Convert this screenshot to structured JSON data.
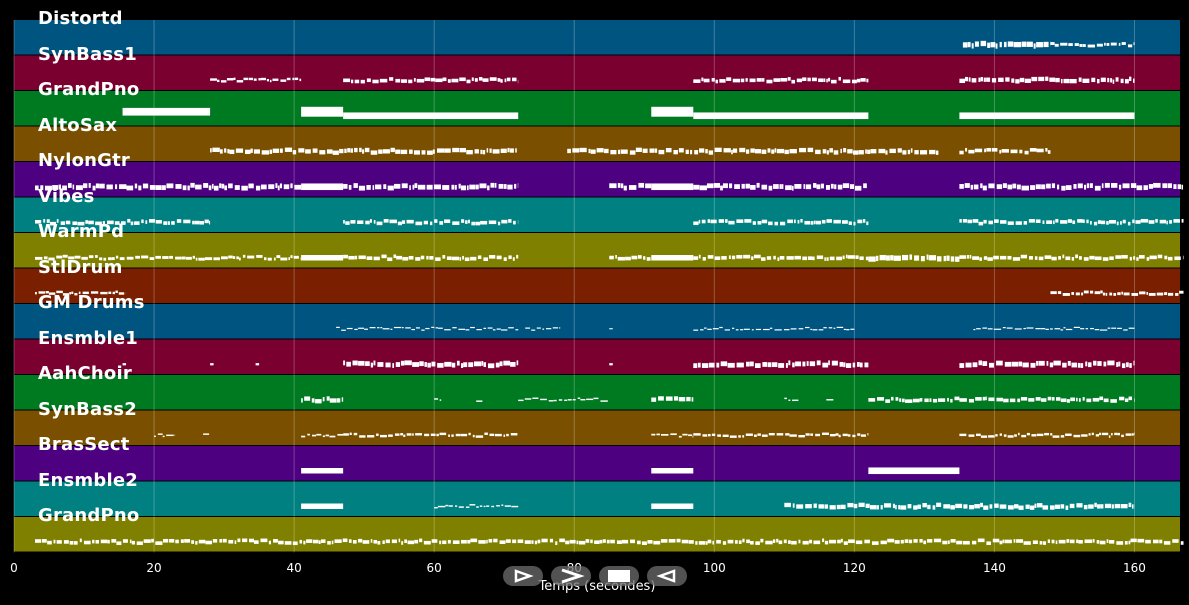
{
  "tracks": [
    {
      "name": "Distortd",
      "color": "#005580",
      "notes": [
        [
          135.5,
          148,
          2.2
        ],
        [
          148,
          160,
          1.2
        ]
      ]
    },
    {
      "name": "SynBass1",
      "color": "#7a0030",
      "notes": [
        [
          28,
          41,
          1
        ],
        [
          47,
          72,
          1.5
        ],
        [
          97,
          122,
          1.5
        ],
        [
          135,
          160,
          1.8
        ]
      ]
    },
    {
      "name": "GrandPno",
      "color": "#007a20",
      "notes": [
        [
          15.5,
          28,
          3.5
        ],
        [
          41,
          47,
          4.5
        ],
        [
          47,
          72,
          3
        ],
        [
          91,
          97,
          4.5
        ],
        [
          97,
          122,
          3
        ],
        [
          135,
          160,
          3
        ]
      ]
    },
    {
      "name": "AltoSax",
      "color": "#7a5000",
      "notes": [
        [
          28,
          72,
          1.8
        ],
        [
          79,
          132,
          1.8
        ],
        [
          135,
          148,
          1.5
        ]
      ]
    },
    {
      "name": "NylonGtr",
      "color": "#4d0080",
      "notes": [
        [
          3,
          41,
          2
        ],
        [
          41,
          47,
          3
        ],
        [
          47,
          72,
          2
        ],
        [
          85,
          91,
          2
        ],
        [
          91,
          97,
          3
        ],
        [
          97,
          122,
          2
        ],
        [
          135,
          167,
          2
        ]
      ]
    },
    {
      "name": "Vibes",
      "color": "#008080",
      "notes": [
        [
          3,
          28,
          1.5
        ],
        [
          47,
          72,
          1.5
        ],
        [
          97,
          122,
          1.5
        ],
        [
          135,
          167,
          1.5
        ]
      ]
    },
    {
      "name": "WarmPd",
      "color": "#808000",
      "notes": [
        [
          3,
          41,
          1.2
        ],
        [
          41,
          47,
          2.5
        ],
        [
          47,
          72,
          1.5
        ],
        [
          85,
          91,
          1.5
        ],
        [
          91,
          97,
          2.5
        ],
        [
          97,
          122,
          1.5
        ],
        [
          122,
          135,
          2.2
        ],
        [
          135,
          167,
          1.5
        ]
      ]
    },
    {
      "name": "StlDrum",
      "color": "#7a2000",
      "notes": [
        [
          3,
          16,
          1
        ],
        [
          148,
          167,
          1.2
        ]
      ]
    },
    {
      "name": "GM Drums",
      "color": "#005580",
      "notes": [
        [
          46,
          72,
          0.5
        ],
        [
          73,
          78,
          0.5
        ],
        [
          85,
          85.5,
          0.5
        ],
        [
          97,
          120,
          0.5
        ],
        [
          137,
          160,
          0.5
        ]
      ]
    },
    {
      "name": "Ensmble1",
      "color": "#7a0030",
      "notes": [
        [
          15.5,
          16,
          1
        ],
        [
          28,
          28.5,
          1
        ],
        [
          34.5,
          35,
          1
        ],
        [
          47,
          72,
          2
        ],
        [
          85,
          85.5,
          1
        ],
        [
          97,
          122,
          2
        ],
        [
          135,
          160,
          2
        ]
      ]
    },
    {
      "name": "AahChoir",
      "color": "#007a20",
      "notes": [
        [
          41,
          47,
          1.8
        ],
        [
          60,
          61,
          0.6
        ],
        [
          66,
          67,
          0.6
        ],
        [
          72,
          85,
          0.6
        ],
        [
          91,
          97,
          1.8
        ],
        [
          110,
          112,
          0.6
        ],
        [
          116,
          117,
          0.6
        ],
        [
          122,
          135,
          1.5
        ],
        [
          135,
          160,
          1.5
        ]
      ]
    },
    {
      "name": "SynBass2",
      "color": "#7a5000",
      "notes": [
        [
          20,
          23,
          0.6
        ],
        [
          27,
          28,
          0.6
        ],
        [
          41,
          47,
          0.7
        ],
        [
          47,
          72,
          1
        ],
        [
          91,
          97,
          0.7
        ],
        [
          97,
          122,
          1
        ],
        [
          135,
          160,
          1
        ]
      ]
    },
    {
      "name": "BrasSect",
      "color": "#4d0080",
      "notes": [
        [
          41,
          47,
          2.5
        ],
        [
          91,
          97,
          2.5
        ],
        [
          122,
          135,
          3
        ]
      ]
    },
    {
      "name": "Ensmble2",
      "color": "#008080",
      "notes": [
        [
          41,
          47,
          2.5
        ],
        [
          60,
          72,
          0.6
        ],
        [
          91,
          97,
          2.5
        ],
        [
          110,
          160,
          1.8
        ]
      ]
    },
    {
      "name": "GrandPno",
      "color": "#808000",
      "notes": [
        [
          3,
          167,
          1.5
        ]
      ]
    }
  ],
  "x_axis": {
    "ticks": [
      "0",
      "20",
      "40",
      "60",
      "80",
      "100",
      "120",
      "140",
      "160"
    ],
    "label": "Temps (secondes)"
  },
  "controls": [
    {
      "name": "play-button",
      "icon": "play-outline-icon"
    },
    {
      "name": "forward-button",
      "icon": "chevron-right-icon"
    },
    {
      "name": "stop-button",
      "icon": "stop-icon"
    },
    {
      "name": "rewind-button",
      "icon": "rewind-outline-icon"
    }
  ]
}
